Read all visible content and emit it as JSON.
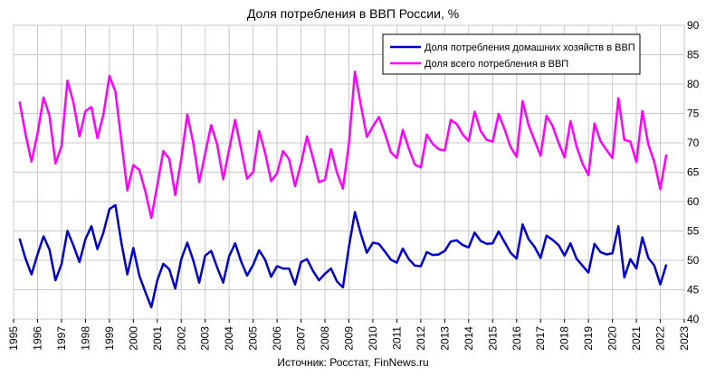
{
  "chart_data": {
    "type": "line",
    "title": "Доля потребления в ВВП России, %",
    "source": "Источник: Росстат, FinNews.ru",
    "xlabel": "",
    "ylabel": "",
    "xlim": [
      1995,
      2023
    ],
    "ylim": [
      40,
      90
    ],
    "x_ticks": [
      1995,
      1996,
      1997,
      1998,
      1999,
      2000,
      2001,
      2002,
      2003,
      2004,
      2005,
      2006,
      2007,
      2008,
      2009,
      2010,
      2011,
      2012,
      2013,
      2014,
      2015,
      2016,
      2017,
      2018,
      2019,
      2020,
      2021,
      2022,
      2023
    ],
    "y_ticks": [
      40,
      45,
      50,
      55,
      60,
      65,
      70,
      75,
      80,
      85,
      90
    ],
    "grid": true,
    "legend_position": "top-right",
    "series": [
      {
        "name": "Доля потребления домашних хозяйств  в ВВП",
        "color": "#0000cc",
        "x": [
          1995.25,
          1995.5,
          1995.75,
          1996.0,
          1996.25,
          1996.5,
          1996.75,
          1997.0,
          1997.25,
          1997.5,
          1997.75,
          1998.0,
          1998.25,
          1998.5,
          1998.75,
          1999.0,
          1999.25,
          1999.5,
          1999.75,
          2000.0,
          2000.25,
          2000.5,
          2000.75,
          2001.0,
          2001.25,
          2001.5,
          2001.75,
          2002.0,
          2002.25,
          2002.5,
          2002.75,
          2003.0,
          2003.25,
          2003.5,
          2003.75,
          2004.0,
          2004.25,
          2004.5,
          2004.75,
          2005.0,
          2005.25,
          2005.5,
          2005.75,
          2006.0,
          2006.25,
          2006.5,
          2006.75,
          2007.0,
          2007.25,
          2007.5,
          2007.75,
          2008.0,
          2008.25,
          2008.5,
          2008.75,
          2009.0,
          2009.25,
          2009.5,
          2009.75,
          2010.0,
          2010.25,
          2010.5,
          2010.75,
          2011.0,
          2011.25,
          2011.5,
          2011.75,
          2012.0,
          2012.25,
          2012.5,
          2012.75,
          2013.0,
          2013.25,
          2013.5,
          2013.75,
          2014.0,
          2014.25,
          2014.5,
          2014.75,
          2015.0,
          2015.25,
          2015.5,
          2015.75,
          2016.0,
          2016.25,
          2016.5,
          2016.75,
          2017.0,
          2017.25,
          2017.5,
          2017.75,
          2018.0,
          2018.25,
          2018.5,
          2018.75,
          2019.0,
          2019.25,
          2019.5,
          2019.75,
          2020.0,
          2020.25,
          2020.5,
          2020.75,
          2021.0,
          2021.25,
          2021.5,
          2021.75,
          2022.0,
          2022.25
        ],
        "values": [
          53.7,
          50.3,
          47.6,
          51.0,
          54.1,
          51.8,
          46.6,
          49.3,
          55.0,
          52.5,
          49.7,
          53.6,
          55.8,
          51.9,
          54.7,
          58.7,
          59.4,
          53.0,
          47.6,
          52.1,
          47.4,
          44.6,
          42.0,
          46.6,
          49.4,
          48.5,
          45.2,
          50.2,
          53.0,
          50.0,
          46.2,
          50.8,
          51.6,
          48.8,
          46.2,
          50.7,
          52.9,
          49.8,
          47.4,
          49.2,
          51.7,
          50.1,
          47.2,
          49.0,
          48.6,
          48.6,
          45.9,
          49.7,
          50.2,
          48.2,
          46.6,
          47.7,
          48.6,
          46.4,
          45.4,
          52.3,
          58.2,
          54.5,
          51.3,
          53.0,
          52.8,
          51.5,
          50.1,
          49.6,
          52.0,
          50.2,
          49.1,
          49.0,
          51.4,
          50.9,
          51.0,
          51.6,
          53.2,
          53.4,
          52.6,
          52.2,
          54.7,
          53.3,
          52.8,
          52.9,
          54.9,
          53.1,
          51.3,
          50.3,
          56.1,
          53.6,
          52.3,
          50.4,
          54.2,
          53.5,
          52.6,
          50.8,
          52.9,
          50.3,
          49.1,
          47.9,
          52.8,
          51.4,
          51.0,
          51.2,
          55.8,
          47.1,
          50.2,
          48.6,
          53.9,
          50.4,
          49.1,
          45.9,
          49.3
        ]
      },
      {
        "name": "Доля всего  потребления в ВВП",
        "color": "#ff00ff",
        "x": [
          1995.25,
          1995.5,
          1995.75,
          1996.0,
          1996.25,
          1996.5,
          1996.75,
          1997.0,
          1997.25,
          1997.5,
          1997.75,
          1998.0,
          1998.25,
          1998.5,
          1998.75,
          1999.0,
          1999.25,
          1999.5,
          1999.75,
          2000.0,
          2000.25,
          2000.5,
          2000.75,
          2001.0,
          2001.25,
          2001.5,
          2001.75,
          2002.0,
          2002.25,
          2002.5,
          2002.75,
          2003.0,
          2003.25,
          2003.5,
          2003.75,
          2004.0,
          2004.25,
          2004.5,
          2004.75,
          2005.0,
          2005.25,
          2005.5,
          2005.75,
          2006.0,
          2006.25,
          2006.5,
          2006.75,
          2007.0,
          2007.25,
          2007.5,
          2007.75,
          2008.0,
          2008.25,
          2008.5,
          2008.75,
          2009.0,
          2009.25,
          2009.5,
          2009.75,
          2010.0,
          2010.25,
          2010.5,
          2010.75,
          2011.0,
          2011.25,
          2011.5,
          2011.75,
          2012.0,
          2012.25,
          2012.5,
          2012.75,
          2013.0,
          2013.25,
          2013.5,
          2013.75,
          2014.0,
          2014.25,
          2014.5,
          2014.75,
          2015.0,
          2015.25,
          2015.5,
          2015.75,
          2016.0,
          2016.25,
          2016.5,
          2016.75,
          2017.0,
          2017.25,
          2017.5,
          2017.75,
          2018.0,
          2018.25,
          2018.5,
          2018.75,
          2019.0,
          2019.25,
          2019.5,
          2019.75,
          2020.0,
          2020.25,
          2020.5,
          2020.75,
          2021.0,
          2021.25,
          2021.5,
          2021.75,
          2022.0,
          2022.25
        ],
        "values": [
          77.0,
          71.5,
          66.8,
          71.6,
          77.7,
          74.6,
          66.5,
          69.4,
          80.6,
          76.8,
          71.1,
          75.4,
          76.1,
          70.8,
          74.8,
          81.4,
          78.7,
          70.3,
          61.9,
          66.2,
          65.4,
          61.7,
          57.2,
          62.8,
          68.6,
          67.3,
          61.1,
          67.3,
          74.8,
          70.0,
          63.3,
          68.2,
          73.0,
          69.7,
          63.8,
          68.9,
          73.9,
          68.9,
          63.9,
          65.0,
          72.0,
          68.3,
          63.5,
          64.8,
          68.6,
          67.2,
          62.6,
          66.5,
          71.1,
          67.4,
          63.3,
          63.7,
          68.9,
          64.9,
          62.2,
          69.9,
          82.1,
          76.4,
          71.0,
          72.8,
          74.4,
          71.6,
          68.4,
          67.4,
          72.2,
          69.0,
          66.3,
          65.8,
          71.4,
          69.8,
          68.9,
          68.7,
          73.9,
          73.2,
          71.4,
          70.3,
          75.3,
          72.0,
          70.5,
          70.2,
          74.9,
          72.3,
          69.3,
          67.6,
          77.1,
          73.0,
          70.4,
          67.8,
          74.6,
          72.9,
          70.0,
          67.5,
          73.7,
          69.4,
          66.5,
          64.5,
          73.3,
          70.3,
          68.8,
          67.4,
          77.6,
          70.5,
          70.2,
          66.7,
          75.4,
          69.7,
          66.7,
          62.1,
          68.0
        ]
      }
    ]
  }
}
